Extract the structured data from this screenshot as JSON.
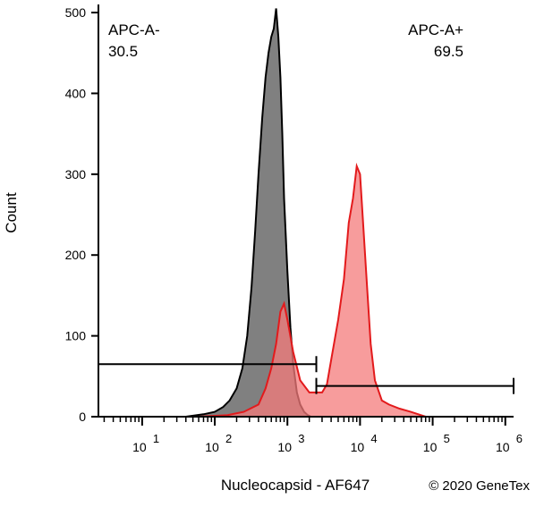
{
  "chart_data": {
    "type": "area",
    "title": "",
    "xlabel": "Nucleocapsid - AF647",
    "ylabel": "Count",
    "x_scale": "log",
    "xlim": [
      2.5,
      1300000
    ],
    "ylim": [
      0,
      510
    ],
    "grid": false,
    "y_ticks": [
      0,
      100,
      200,
      300,
      400,
      500
    ],
    "x_ticks": [
      {
        "base": "10",
        "exp": "1",
        "value": 10
      },
      {
        "base": "10",
        "exp": "2",
        "value": 100
      },
      {
        "base": "10",
        "exp": "3",
        "value": 1000
      },
      {
        "base": "10",
        "exp": "4",
        "value": 10000
      },
      {
        "base": "10",
        "exp": "5",
        "value": 100000
      },
      {
        "base": "10",
        "exp": "6",
        "value": 1000000
      }
    ],
    "series": [
      {
        "color": "#000000",
        "fill": "#808080",
        "x": [
          40,
          70,
          100,
          130,
          160,
          200,
          240,
          280,
          320,
          360,
          400,
          450,
          500,
          550,
          600,
          650,
          700,
          750,
          800,
          850,
          900,
          1000,
          1100,
          1200,
          1350,
          1500,
          1700,
          1900,
          2100
        ],
        "y": [
          0,
          3,
          6,
          12,
          20,
          35,
          60,
          100,
          160,
          230,
          300,
          370,
          420,
          450,
          470,
          480,
          505,
          470,
          420,
          350,
          270,
          180,
          110,
          65,
          30,
          15,
          6,
          2,
          0
        ]
      },
      {
        "color": "#e31a1c",
        "fill": "#f47b7b",
        "x": [
          60,
          150,
          250,
          400,
          500,
          600,
          700,
          800,
          900,
          1000,
          1200,
          1500,
          2000,
          2500,
          3000,
          3500,
          4000,
          5000,
          6000,
          7000,
          8000,
          9000,
          10000,
          11000,
          12500,
          14000,
          16000,
          20000,
          25000,
          35000,
          50000,
          80000
        ],
        "y": [
          0,
          2,
          6,
          15,
          35,
          60,
          90,
          130,
          140,
          120,
          80,
          45,
          30,
          30,
          30,
          40,
          70,
          120,
          170,
          240,
          270,
          310,
          300,
          240,
          160,
          90,
          45,
          20,
          15,
          10,
          6,
          0
        ]
      }
    ],
    "gates": [
      {
        "label": "APC-A-",
        "value": "30.5",
        "x_range": [
          2.5,
          2500
        ],
        "y": 65
      },
      {
        "label": "APC-A+",
        "value": "69.5",
        "x_range": [
          2500,
          1300000
        ],
        "y": 38
      }
    ]
  },
  "watermark": "© 2020 GeneTex"
}
